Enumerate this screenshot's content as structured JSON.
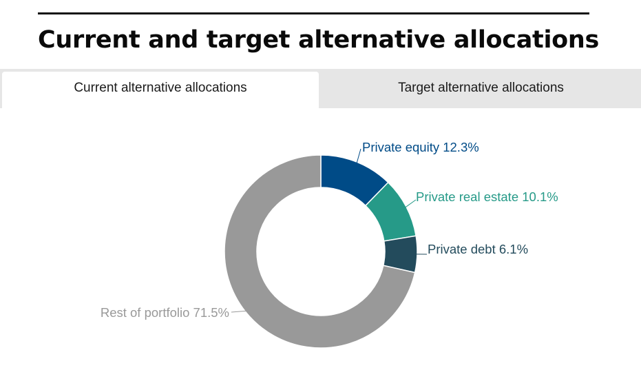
{
  "header": {
    "title": "Current and target alternative allocations"
  },
  "tabs": [
    {
      "label": "Current alternative allocations",
      "active": true
    },
    {
      "label": "Target alternative allocations",
      "active": false
    }
  ],
  "chart_data": {
    "type": "pie",
    "donut": true,
    "title": "",
    "legend": "none",
    "start_angle_deg": 0,
    "direction": "clockwise",
    "series": [
      {
        "name": "Private equity",
        "label": "Private equity 12.3%",
        "value": 12.3,
        "color": "#004b87"
      },
      {
        "name": "Private real estate",
        "label": "Private real estate 10.1%",
        "value": 10.1,
        "color": "#269a88"
      },
      {
        "name": "Private debt",
        "label": "Private debt 6.1%",
        "value": 6.1,
        "color": "#234b5c"
      },
      {
        "name": "Rest of portfolio",
        "label": "Rest of portfolio 71.5%",
        "value": 71.5,
        "color": "#999999"
      }
    ]
  }
}
